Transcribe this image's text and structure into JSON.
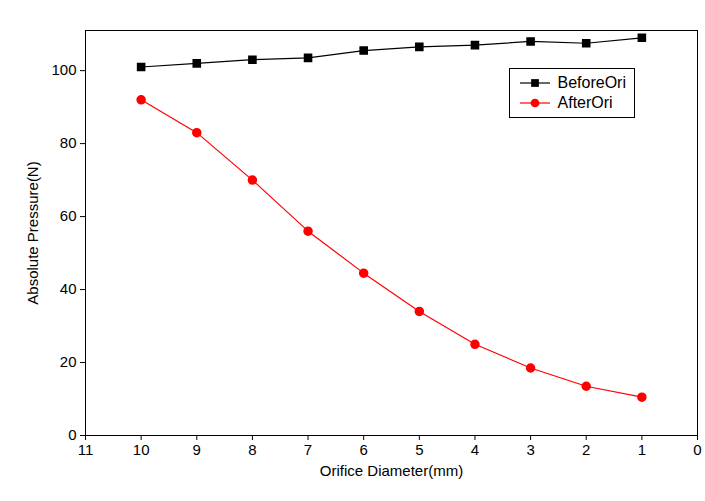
{
  "chart_data": {
    "type": "line",
    "x_label": "Orifice Diameter(mm)",
    "y_label": "Absolute Pressure(N)",
    "x": [
      10,
      9,
      8,
      7,
      6,
      5,
      4,
      3,
      2,
      1
    ],
    "series": [
      {
        "name": "BeforeOri",
        "color": "#000000",
        "marker": "square",
        "values": [
          101,
          102,
          103,
          103.5,
          105.5,
          106.5,
          107,
          108,
          107.5,
          109
        ]
      },
      {
        "name": "AfterOri",
        "color": "#ff0000",
        "marker": "circle",
        "values": [
          92,
          83,
          70,
          56,
          44.5,
          34,
          25,
          18.5,
          13.5,
          10.5
        ]
      }
    ],
    "xlim": [
      11,
      0
    ],
    "xticks": [
      11,
      10,
      9,
      8,
      7,
      6,
      5,
      4,
      3,
      2,
      1,
      0
    ],
    "ylim": [
      0,
      111
    ],
    "yticks": [
      0,
      20,
      40,
      60,
      80,
      100
    ],
    "grid": false,
    "legend": "top-right"
  }
}
